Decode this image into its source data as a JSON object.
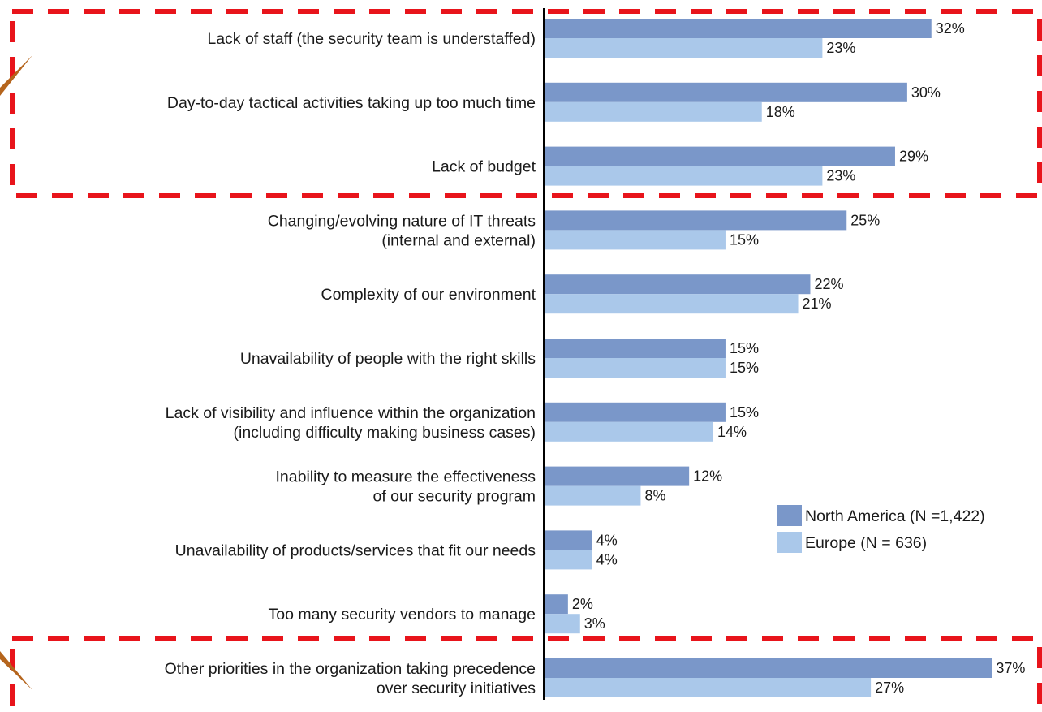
{
  "chart_data": {
    "type": "bar",
    "orientation": "horizontal",
    "categories": [
      [
        "Lack of staff (the security team is understaffed)"
      ],
      [
        "Day-to-day tactical activities taking up too much time"
      ],
      [
        "Lack of budget"
      ],
      [
        "Changing/evolving nature of IT threats",
        "(internal and external)"
      ],
      [
        "Complexity of our environment"
      ],
      [
        "Unavailability of people with the right skills"
      ],
      [
        "Lack of visibility and influence within the organization",
        "(including difficulty making business cases)"
      ],
      [
        "Inability to measure the effectiveness",
        "of our security program"
      ],
      [
        "Unavailability of products/services that fit our needs"
      ],
      [
        "Too many security vendors to manage"
      ],
      [
        "Other priorities in the organization taking precedence",
        "over security initiatives"
      ]
    ],
    "series": [
      {
        "name": "North America (N =1,422)",
        "color": "#7a97c9",
        "values": [
          32,
          30,
          29,
          25,
          22,
          15,
          15,
          12,
          4,
          2,
          37
        ],
        "labels": [
          "32%",
          "30%",
          "29%",
          "25%",
          "22%",
          "15%",
          "15%",
          "12%",
          "4%",
          "2%",
          "37%"
        ]
      },
      {
        "name": "Europe (N = 636)",
        "color": "#aac8ea",
        "values": [
          23,
          18,
          23,
          15,
          21,
          15,
          14,
          8,
          4,
          3,
          27
        ],
        "labels": [
          "23%",
          "18%",
          "23%",
          "15%",
          "21%",
          "15%",
          "14%",
          "8%",
          "4%",
          "3%",
          "27%"
        ]
      }
    ],
    "xlim": [
      0,
      37
    ],
    "legend_position": "bottom-right",
    "highlight_groups": [
      {
        "categories": [
          0,
          1,
          2
        ],
        "style": "red-dashed-box",
        "color": "#e8141b"
      },
      {
        "categories": [
          10
        ],
        "style": "red-dashed-box",
        "color": "#e8141b"
      }
    ],
    "arrow_color": "#b5651d"
  }
}
